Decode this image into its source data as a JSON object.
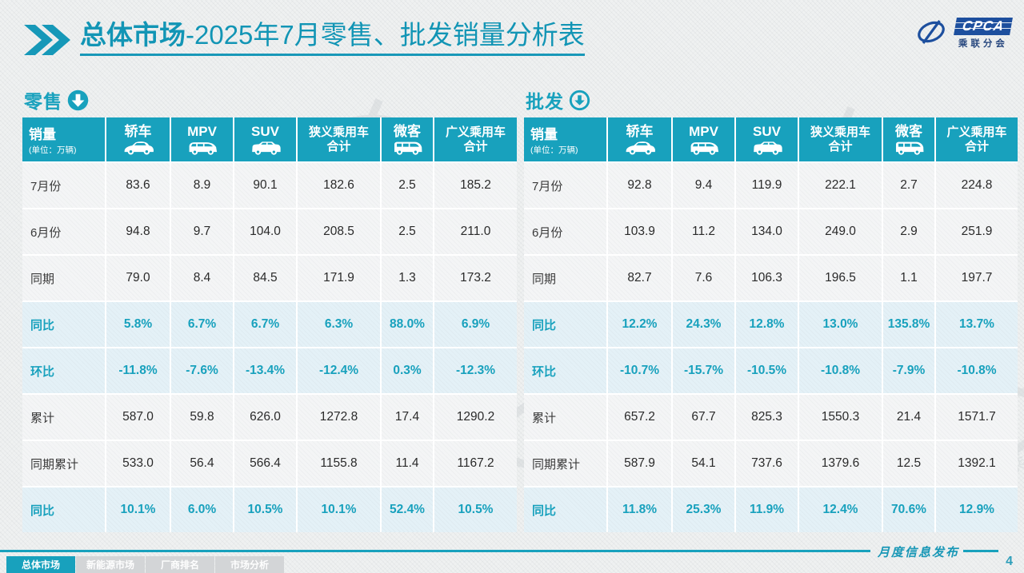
{
  "colors": {
    "accent": "#18a1bd",
    "logo_blue": "#1d4f9e"
  },
  "header": {
    "title_bold": "总体市场",
    "title_rest": "-2025年7月零售、批发销量分析表"
  },
  "logo": {
    "cpca": "CPCA",
    "cn": "乘联分会"
  },
  "watermark": {
    "text": "乘联分会"
  },
  "tables": [
    {
      "section": {
        "label": "零售",
        "icon": "down-arrow-filled-icon"
      },
      "unit_title": "销量",
      "unit_sub": "(单位：万辆)",
      "columns": [
        {
          "label": "轿车",
          "icon": "sedan-icon"
        },
        {
          "label": "MPV",
          "icon": "mpv-icon"
        },
        {
          "label": "SUV",
          "icon": "suv-icon"
        },
        {
          "label": "狭义乘用车\n合计",
          "icon": ""
        },
        {
          "label": "微客",
          "icon": "microvan-icon"
        },
        {
          "label": "广义乘用车\n合计",
          "icon": ""
        }
      ],
      "rows": [
        {
          "label": "7月份",
          "highlight": false,
          "values": [
            "83.6",
            "8.9",
            "90.1",
            "182.6",
            "2.5",
            "185.2"
          ]
        },
        {
          "label": "6月份",
          "highlight": false,
          "values": [
            "94.8",
            "9.7",
            "104.0",
            "208.5",
            "2.5",
            "211.0"
          ]
        },
        {
          "label": "同期",
          "highlight": false,
          "values": [
            "79.0",
            "8.4",
            "84.5",
            "171.9",
            "1.3",
            "173.2"
          ]
        },
        {
          "label": "同比",
          "highlight": true,
          "values": [
            "5.8%",
            "6.7%",
            "6.7%",
            "6.3%",
            "88.0%",
            "6.9%"
          ]
        },
        {
          "label": "环比",
          "highlight": true,
          "values": [
            "-11.8%",
            "-7.6%",
            "-13.4%",
            "-12.4%",
            "0.3%",
            "-12.3%"
          ]
        },
        {
          "label": "累计",
          "highlight": false,
          "values": [
            "587.0",
            "59.8",
            "626.0",
            "1272.8",
            "17.4",
            "1290.2"
          ]
        },
        {
          "label": "同期累计",
          "highlight": false,
          "values": [
            "533.0",
            "56.4",
            "566.4",
            "1155.8",
            "11.4",
            "1167.2"
          ]
        },
        {
          "label": "同比",
          "highlight": true,
          "values": [
            "10.1%",
            "6.0%",
            "10.5%",
            "10.1%",
            "52.4%",
            "10.5%"
          ]
        }
      ]
    },
    {
      "section": {
        "label": "批发",
        "icon": "down-arrow-ring-icon"
      },
      "unit_title": "销量",
      "unit_sub": "(单位：万辆)",
      "columns": [
        {
          "label": "轿车",
          "icon": "sedan-icon"
        },
        {
          "label": "MPV",
          "icon": "mpv-icon"
        },
        {
          "label": "SUV",
          "icon": "suv-icon"
        },
        {
          "label": "狭义乘用车\n合计",
          "icon": ""
        },
        {
          "label": "微客",
          "icon": "microvan-icon"
        },
        {
          "label": "广义乘用车\n合计",
          "icon": ""
        }
      ],
      "rows": [
        {
          "label": "7月份",
          "highlight": false,
          "values": [
            "92.8",
            "9.4",
            "119.9",
            "222.1",
            "2.7",
            "224.8"
          ]
        },
        {
          "label": "6月份",
          "highlight": false,
          "values": [
            "103.9",
            "11.2",
            "134.0",
            "249.0",
            "2.9",
            "251.9"
          ]
        },
        {
          "label": "同期",
          "highlight": false,
          "values": [
            "82.7",
            "7.6",
            "106.3",
            "196.5",
            "1.1",
            "197.7"
          ]
        },
        {
          "label": "同比",
          "highlight": true,
          "values": [
            "12.2%",
            "24.3%",
            "12.8%",
            "13.0%",
            "135.8%",
            "13.7%"
          ]
        },
        {
          "label": "环比",
          "highlight": true,
          "values": [
            "-10.7%",
            "-15.7%",
            "-10.5%",
            "-10.8%",
            "-7.9%",
            "-10.8%"
          ]
        },
        {
          "label": "累计",
          "highlight": false,
          "values": [
            "657.2",
            "67.7",
            "825.3",
            "1550.3",
            "21.4",
            "1571.7"
          ]
        },
        {
          "label": "同期累计",
          "highlight": false,
          "values": [
            "587.9",
            "54.1",
            "737.6",
            "1379.6",
            "12.5",
            "1392.1"
          ]
        },
        {
          "label": "同比",
          "highlight": true,
          "values": [
            "11.8%",
            "25.3%",
            "11.9%",
            "12.4%",
            "70.6%",
            "12.9%"
          ]
        }
      ]
    }
  ],
  "footer": {
    "ribbon_label": "月度信息发布",
    "page_number": "4",
    "tabs": [
      {
        "label": "总体市场",
        "active": true
      },
      {
        "label": "新能源市场",
        "active": false
      },
      {
        "label": "厂商排名",
        "active": false
      },
      {
        "label": "市场分析",
        "active": false
      }
    ]
  }
}
